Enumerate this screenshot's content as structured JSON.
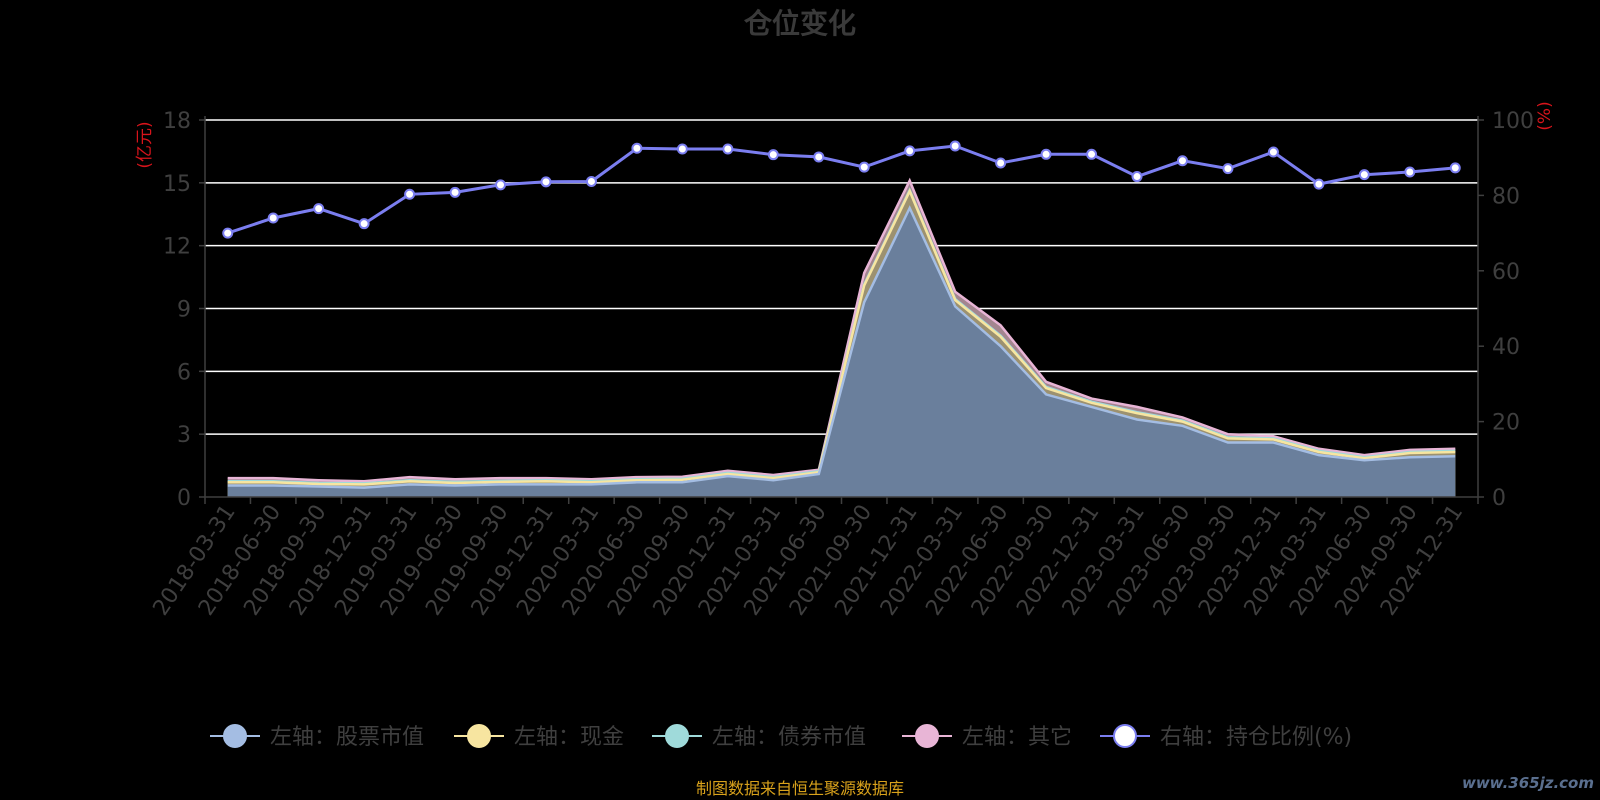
{
  "chart_data": {
    "type": "area",
    "title": "仓位变化",
    "left_axis_label": "(亿元)",
    "right_axis_label": "(%)",
    "left_ylim": [
      0,
      18
    ],
    "left_ticks": [
      0,
      3,
      6,
      9,
      12,
      15,
      18
    ],
    "right_ylim": [
      0,
      100
    ],
    "right_ticks": [
      0,
      20,
      40,
      60,
      80,
      100
    ],
    "grid": true,
    "legend_position": "bottom",
    "categories": [
      "2018-03-31",
      "2018-06-30",
      "2018-09-30",
      "2018-12-31",
      "2019-03-31",
      "2019-06-30",
      "2019-09-30",
      "2019-12-31",
      "2020-03-31",
      "2020-06-30",
      "2020-09-30",
      "2020-12-31",
      "2021-03-31",
      "2021-06-30",
      "2021-09-30",
      "2021-12-31",
      "2022-03-31",
      "2022-06-30",
      "2022-09-30",
      "2022-12-31",
      "2023-03-31",
      "2023-06-30",
      "2023-09-30",
      "2023-12-31",
      "2024-03-31",
      "2024-06-30",
      "2024-09-30",
      "2024-12-31"
    ],
    "stacked_series": [
      {
        "name": "左轴：股票市值",
        "color": "#a4bde3",
        "values": [
          0.55,
          0.55,
          0.5,
          0.45,
          0.6,
          0.55,
          0.6,
          0.6,
          0.6,
          0.7,
          0.7,
          1.0,
          0.8,
          1.1,
          9.3,
          13.8,
          9.1,
          7.2,
          4.9,
          4.3,
          3.7,
          3.4,
          2.6,
          2.6,
          2.0,
          1.75,
          1.9,
          1.95
        ]
      },
      {
        "name": "左轴：现金",
        "color": "#f7e5a0",
        "values": [
          0.15,
          0.15,
          0.12,
          0.15,
          0.15,
          0.12,
          0.12,
          0.15,
          0.1,
          0.1,
          0.12,
          0.1,
          0.1,
          0.08,
          0.8,
          0.8,
          0.3,
          0.45,
          0.3,
          0.2,
          0.3,
          0.2,
          0.2,
          0.15,
          0.15,
          0.1,
          0.2,
          0.2
        ]
      },
      {
        "name": "左轴：债券市值",
        "color": "#9fdada",
        "values": [
          0.05,
          0.05,
          0.05,
          0.05,
          0.05,
          0.05,
          0.05,
          0.05,
          0.05,
          0.05,
          0.05,
          0.05,
          0.05,
          0.05,
          0.05,
          0.05,
          0.05,
          0.05,
          0.05,
          0.05,
          0.05,
          0.05,
          0.05,
          0.05,
          0.05,
          0.05,
          0.05,
          0.05
        ]
      },
      {
        "name": "左轴：其它",
        "color": "#e8b5d6",
        "values": [
          0.15,
          0.15,
          0.13,
          0.1,
          0.15,
          0.13,
          0.13,
          0.1,
          0.1,
          0.1,
          0.1,
          0.1,
          0.1,
          0.07,
          0.55,
          0.45,
          0.35,
          0.5,
          0.25,
          0.15,
          0.25,
          0.15,
          0.15,
          0.1,
          0.1,
          0.1,
          0.1,
          0.1
        ]
      }
    ],
    "line_series": {
      "name": "右轴：持仓比例(%)",
      "color": "#7b7ef0",
      "values": [
        70.0,
        74.0,
        76.5,
        72.5,
        80.3,
        80.8,
        82.8,
        83.6,
        83.7,
        92.5,
        92.3,
        92.3,
        90.8,
        90.2,
        87.5,
        91.8,
        93.1,
        88.6,
        90.9,
        90.9,
        85.0,
        89.2,
        87.1,
        91.5,
        83.0,
        85.5,
        86.2,
        87.3
      ]
    }
  },
  "footer_note": "制图数据来自恒生聚源数据库",
  "watermark": "www.365jz.com",
  "colors": {
    "background": "#000000",
    "title": "#3a3a3a",
    "axis_text": "#3f3f3f",
    "axis_name": "#d8141b",
    "grid": "#ffffff",
    "footer": "#d9a21b",
    "watermark": "#5a6f8f"
  }
}
